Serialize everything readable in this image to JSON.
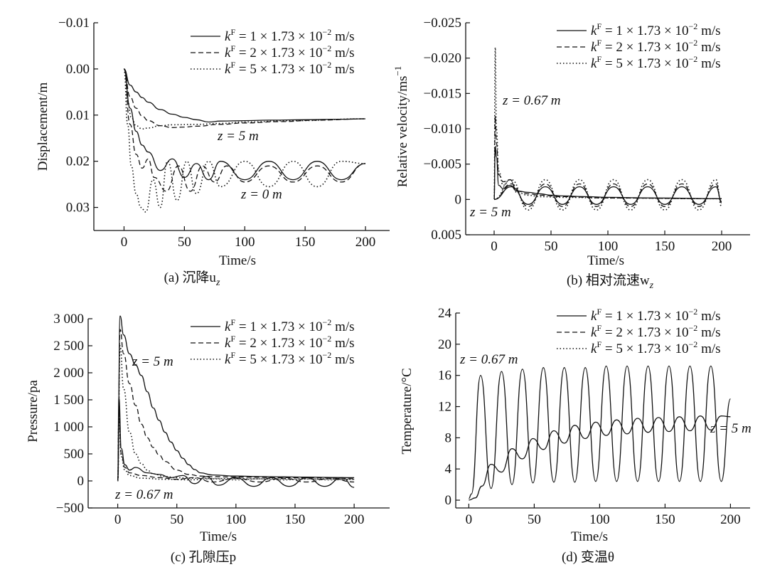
{
  "figure": {
    "panels": [
      {
        "caption": "(a) 沉降u",
        "caption_sub": "z",
        "xlabel": "Time/s",
        "ylabel": "Displacement/m",
        "yticks": [
          "−0.01",
          "0.00",
          "0.01",
          "0.02",
          "0.03"
        ],
        "xticks": [
          "0",
          "50",
          "100",
          "150",
          "200"
        ],
        "annotations": [
          "z = 5 m",
          "z = 0 m"
        ]
      },
      {
        "caption": "(b) 相对流速w",
        "caption_sub": "z",
        "xlabel": "Time/s",
        "ylabel": "Relative velocity/ms",
        "ylabel_sup": "−1",
        "yticks": [
          "−0.025",
          "−0.020",
          "−0.015",
          "−0.010",
          "−0.005",
          "0",
          "0.005"
        ],
        "xticks": [
          "0",
          "50",
          "100",
          "150",
          "200"
        ],
        "annotations": [
          "z = 0.67 m",
          "z = 5 m"
        ]
      },
      {
        "caption": "(c) 孔隙压p",
        "caption_sub": "",
        "xlabel": "Time/s",
        "ylabel": "Pressure/pa",
        "yticks": [
          "3 000",
          "2 500",
          "2 000",
          "1 500",
          "1 000",
          "500",
          "0",
          "−500"
        ],
        "xticks": [
          "0",
          "50",
          "100",
          "150",
          "200"
        ],
        "annotations": [
          "z = 5 m",
          "z = 0.67 m"
        ]
      },
      {
        "caption": "(d) 变温θ",
        "caption_sub": "",
        "xlabel": "Time/s",
        "ylabel": "Temperature/°C",
        "yticks": [
          "24",
          "20",
          "16",
          "12",
          "8",
          "4",
          "0"
        ],
        "xticks": [
          "0",
          "50",
          "100",
          "150",
          "200"
        ],
        "annotations": [
          "z = 0.67 m",
          "z = 5 m"
        ]
      }
    ],
    "legend": {
      "entries": [
        {
          "k": "k",
          "sup": "F",
          "text": " = 1 × 1.73 × 10",
          "exp": "−2",
          "unit": " m/s",
          "style": "solid"
        },
        {
          "k": "k",
          "sup": "F",
          "text": " = 2 × 1.73 × 10",
          "exp": "−2",
          "unit": " m/s",
          "style": "dashed"
        },
        {
          "k": "k",
          "sup": "F",
          "text": " = 5 × 1.73 × 10",
          "exp": "−2",
          "unit": " m/s",
          "style": "dotted"
        }
      ]
    }
  },
  "chart_data": [
    {
      "type": "line",
      "title": "(a) 沉降uz",
      "xlabel": "Time/s",
      "ylabel": "Displacement/m",
      "xlim": [
        -25,
        220
      ],
      "ylim": [
        -0.01,
        0.035
      ],
      "y_inverted": true,
      "grid": false,
      "legend_position": "top-right",
      "series": [
        {
          "name": "kF = 1 × 1.73 × 10−2 m/s, z = 5 m",
          "x": [
            0,
            5,
            10,
            15,
            20,
            30,
            40,
            50,
            60,
            70,
            80,
            100,
            120,
            150,
            180,
            200
          ],
          "y": [
            0.0,
            0.0035,
            0.005,
            0.0062,
            0.0072,
            0.0088,
            0.0098,
            0.0105,
            0.011,
            0.0115,
            0.0113,
            0.0112,
            0.0111,
            0.011,
            0.0109,
            0.0108
          ]
        },
        {
          "name": "kF = 2 × 1.73 × 10−2 m/s, z = 5 m",
          "x": [
            0,
            5,
            10,
            15,
            20,
            30,
            40,
            50,
            60,
            80,
            100,
            130,
            160,
            200
          ],
          "y": [
            0.0,
            0.006,
            0.0085,
            0.0102,
            0.0112,
            0.0123,
            0.0127,
            0.0126,
            0.0124,
            0.012,
            0.0117,
            0.0114,
            0.0111,
            0.0108
          ]
        },
        {
          "name": "kF = 5 × 1.73 × 10−2 m/s, z = 5 m",
          "x": [
            0,
            3,
            6,
            10,
            15,
            20,
            30,
            40,
            60,
            80,
            100,
            140,
            200
          ],
          "y": [
            0.0,
            0.007,
            0.0105,
            0.0123,
            0.013,
            0.0128,
            0.0123,
            0.0121,
            0.012,
            0.0118,
            0.0115,
            0.0112,
            0.0108
          ]
        },
        {
          "name": "kF = 1 × 1.73 × 10−2 m/s, z = 0 m",
          "x": [
            0,
            5,
            10,
            15,
            20,
            30,
            40,
            50,
            60,
            70,
            80,
            100,
            120,
            140,
            160,
            180,
            200
          ],
          "y": [
            0.0,
            0.0085,
            0.0135,
            0.0165,
            0.018,
            0.022,
            0.0195,
            0.0235,
            0.0205,
            0.024,
            0.02,
            0.024,
            0.02,
            0.024,
            0.02,
            0.024,
            0.0205
          ]
        },
        {
          "name": "kF = 2 × 1.73 × 10−2 m/s, z = 0 m",
          "x": [
            0,
            5,
            10,
            15,
            20,
            25,
            35,
            45,
            55,
            65,
            75,
            85,
            100,
            120,
            140,
            160,
            180,
            200
          ],
          "y": [
            0.0,
            0.012,
            0.0185,
            0.0215,
            0.0195,
            0.0235,
            0.0265,
            0.021,
            0.0265,
            0.021,
            0.0245,
            0.021,
            0.0245,
            0.021,
            0.0245,
            0.021,
            0.0245,
            0.0205
          ]
        },
        {
          "name": "kF = 5 × 1.73 × 10−2 m/s, z = 0 m",
          "x": [
            0,
            3,
            6,
            10,
            14,
            18,
            24,
            30,
            36,
            44,
            52,
            60,
            70,
            80,
            100,
            120,
            140,
            160,
            180,
            200
          ],
          "y": [
            0.0,
            0.012,
            0.021,
            0.027,
            0.03,
            0.031,
            0.024,
            0.03,
            0.02,
            0.0285,
            0.02,
            0.027,
            0.02,
            0.0255,
            0.02,
            0.0255,
            0.02,
            0.0255,
            0.02,
            0.0205
          ]
        }
      ]
    },
    {
      "type": "line",
      "title": "(b) 相对流速wz",
      "xlabel": "Time/s",
      "ylabel": "Relative velocity/ms−1",
      "xlim": [
        -25,
        225
      ],
      "ylim": [
        -0.025,
        0.005
      ],
      "y_inverted": true,
      "grid": false,
      "legend_position": "top-right",
      "series": [
        {
          "name": "kF = 1 × 1.73 × 10−2 m/s, z = 0.67 m",
          "x": [
            0,
            1,
            2,
            4,
            8,
            14,
            20,
            30,
            40,
            50,
            60,
            80,
            100,
            140,
            200
          ],
          "y": [
            0.0,
            -0.0075,
            -0.006,
            -0.002,
            -0.0015,
            -0.002,
            -0.0012,
            -0.001,
            -0.0008,
            -0.0006,
            -0.0005,
            -0.0004,
            -0.0003,
            -0.0002,
            -0.0001
          ]
        },
        {
          "name": "kF = 2 × 1.73 × 10−2 m/s, z = 0.67 m",
          "x": [
            0,
            1,
            2,
            4,
            8,
            14,
            20,
            30,
            40,
            60,
            100,
            200
          ],
          "y": [
            0.0,
            -0.0118,
            -0.008,
            -0.0035,
            -0.0025,
            -0.0028,
            -0.0012,
            -0.0008,
            -0.0006,
            -0.0004,
            -0.0002,
            -0.0001
          ]
        },
        {
          "name": "kF = 5 × 1.73 × 10−2 m/s, z = 0.67 m",
          "x": [
            0,
            1,
            2,
            4,
            8,
            14,
            20,
            30,
            40,
            60,
            100,
            200
          ],
          "y": [
            0.0,
            -0.0215,
            -0.01,
            -0.004,
            -0.002,
            -0.0028,
            -0.001,
            -0.0006,
            -0.0004,
            -0.0003,
            -0.0002,
            -0.0001
          ]
        },
        {
          "name": "kF = 1 × 1.73 × 10−2 m/s, z = 5 m",
          "x": [
            0,
            15,
            30,
            45,
            60,
            75,
            90,
            105,
            120,
            135,
            150,
            165,
            180,
            195,
            200
          ],
          "y": [
            0.0,
            -0.0018,
            0.0007,
            -0.0018,
            0.0007,
            -0.0018,
            0.0007,
            -0.0018,
            0.0007,
            -0.0018,
            0.0007,
            -0.0018,
            0.0007,
            -0.0018,
            0.0003
          ]
        },
        {
          "name": "kF = 2 × 1.73 × 10−2 m/s, z = 5 m",
          "x": [
            0,
            15,
            30,
            45,
            60,
            75,
            90,
            105,
            120,
            135,
            150,
            165,
            180,
            195,
            200
          ],
          "y": [
            0.0,
            -0.0022,
            0.001,
            -0.0022,
            0.001,
            -0.0022,
            0.001,
            -0.0022,
            0.001,
            -0.0022,
            0.001,
            -0.0022,
            0.001,
            -0.0022,
            0.0005
          ]
        },
        {
          "name": "kF = 5 × 1.73 × 10−2 m/s, z = 5 m",
          "x": [
            0,
            15,
            30,
            45,
            60,
            75,
            90,
            105,
            120,
            135,
            150,
            165,
            180,
            195,
            200
          ],
          "y": [
            0.0,
            -0.0028,
            0.0015,
            -0.0028,
            0.0015,
            -0.0028,
            0.0015,
            -0.0028,
            0.0015,
            -0.0028,
            0.0015,
            -0.0028,
            0.0015,
            -0.0028,
            0.001
          ]
        }
      ]
    },
    {
      "type": "line",
      "title": "(c) 孔隙压p",
      "xlabel": "Time/s",
      "ylabel": "Pressure/pa",
      "xlim": [
        -25,
        230
      ],
      "ylim": [
        -500,
        3000
      ],
      "grid": false,
      "legend_position": "top-right",
      "series": [
        {
          "name": "kF = 1 × 1.73 × 10−2 m/s, z = 5 m",
          "x": [
            0,
            2,
            5,
            10,
            15,
            20,
            25,
            30,
            35,
            40,
            45,
            50,
            55,
            60,
            65,
            70,
            80,
            100,
            120,
            140,
            160,
            180,
            200
          ],
          "y": [
            0,
            3050,
            2700,
            2350,
            2150,
            1950,
            1650,
            1350,
            1120,
            900,
            720,
            560,
            420,
            300,
            210,
            150,
            110,
            90,
            80,
            75,
            70,
            65,
            60
          ]
        },
        {
          "name": "kF = 2 × 1.73 × 10−2 m/s, z = 5 m",
          "x": [
            0,
            2,
            5,
            10,
            15,
            20,
            25,
            30,
            35,
            40,
            50,
            60,
            70,
            80,
            100,
            150,
            200
          ],
          "y": [
            0,
            2800,
            2350,
            1800,
            1400,
            1050,
            800,
            620,
            480,
            360,
            200,
            120,
            90,
            80,
            70,
            60,
            50
          ]
        },
        {
          "name": "kF = 5 × 1.73 × 10−2 m/s, z = 5 m",
          "x": [
            0,
            2,
            5,
            10,
            15,
            20,
            25,
            30,
            40,
            50,
            60,
            80,
            100,
            150,
            200
          ],
          "y": [
            0,
            2500,
            1700,
            900,
            500,
            320,
            200,
            130,
            80,
            60,
            50,
            45,
            40,
            35,
            30
          ]
        },
        {
          "name": "kF = 1 × 1.73 × 10−2 m/s, z = 0.67 m",
          "x": [
            0,
            1,
            3,
            6,
            10,
            15,
            25,
            35,
            45,
            55,
            65,
            75,
            85,
            100,
            115,
            130,
            145,
            160,
            175,
            190,
            200
          ],
          "y": [
            0,
            1550,
            600,
            300,
            200,
            250,
            150,
            120,
            60,
            100,
            -50,
            80,
            -80,
            60,
            -100,
            60,
            -100,
            60,
            -100,
            60,
            -120
          ]
        },
        {
          "name": "kF = 2 × 1.73 × 10−2 m/s, z = 0.67 m",
          "x": [
            0,
            1,
            3,
            6,
            10,
            20,
            35,
            50,
            65,
            80,
            100,
            120,
            140,
            160,
            180,
            200
          ],
          "y": [
            0,
            1300,
            500,
            250,
            150,
            100,
            60,
            30,
            60,
            -20,
            50,
            -20,
            50,
            -20,
            50,
            -20
          ]
        },
        {
          "name": "kF = 5 × 1.73 × 10−2 m/s, z = 0.67 m",
          "x": [
            0,
            1,
            3,
            6,
            10,
            20,
            40,
            60,
            80,
            100,
            120,
            140,
            160,
            180,
            200
          ],
          "y": [
            0,
            1200,
            450,
            200,
            100,
            50,
            30,
            20,
            40,
            20,
            40,
            20,
            40,
            20,
            30
          ]
        }
      ]
    },
    {
      "type": "line",
      "title": "(d) 变温θ",
      "xlabel": "Time/s",
      "ylabel": "Temperature/°C",
      "xlim": [
        -10,
        215
      ],
      "ylim": [
        -1,
        24
      ],
      "grid": false,
      "legend_position": "top-right",
      "series": [
        {
          "name": "z = 0.67 m",
          "x": [
            0,
            2,
            9,
            17,
            25,
            33,
            41,
            49,
            57,
            65,
            73,
            81,
            89,
            97,
            105,
            113,
            121,
            129,
            137,
            145,
            153,
            161,
            169,
            177,
            185,
            193,
            200
          ],
          "y": [
            0.2,
            0.8,
            16.0,
            1.5,
            16.5,
            2.0,
            16.8,
            2.2,
            17.0,
            2.3,
            17.0,
            2.3,
            17.0,
            2.4,
            17.2,
            2.4,
            17.2,
            2.4,
            17.2,
            2.4,
            17.2,
            2.4,
            17.2,
            2.4,
            17.2,
            2.4,
            13.0
          ]
        },
        {
          "name": "z = 5 m",
          "x": [
            0,
            5,
            10,
            17,
            25,
            33,
            41,
            49,
            57,
            65,
            73,
            81,
            89,
            97,
            105,
            113,
            121,
            129,
            137,
            145,
            153,
            161,
            169,
            177,
            185,
            193,
            200
          ],
          "y": [
            0.0,
            0.3,
            1.8,
            4.6,
            3.6,
            6.6,
            5.3,
            7.9,
            6.5,
            8.9,
            7.3,
            9.6,
            7.9,
            10.0,
            8.3,
            10.3,
            8.5,
            10.5,
            8.7,
            10.6,
            8.8,
            10.7,
            8.9,
            10.8,
            9.0,
            10.8,
            10.7
          ]
        }
      ]
    }
  ]
}
